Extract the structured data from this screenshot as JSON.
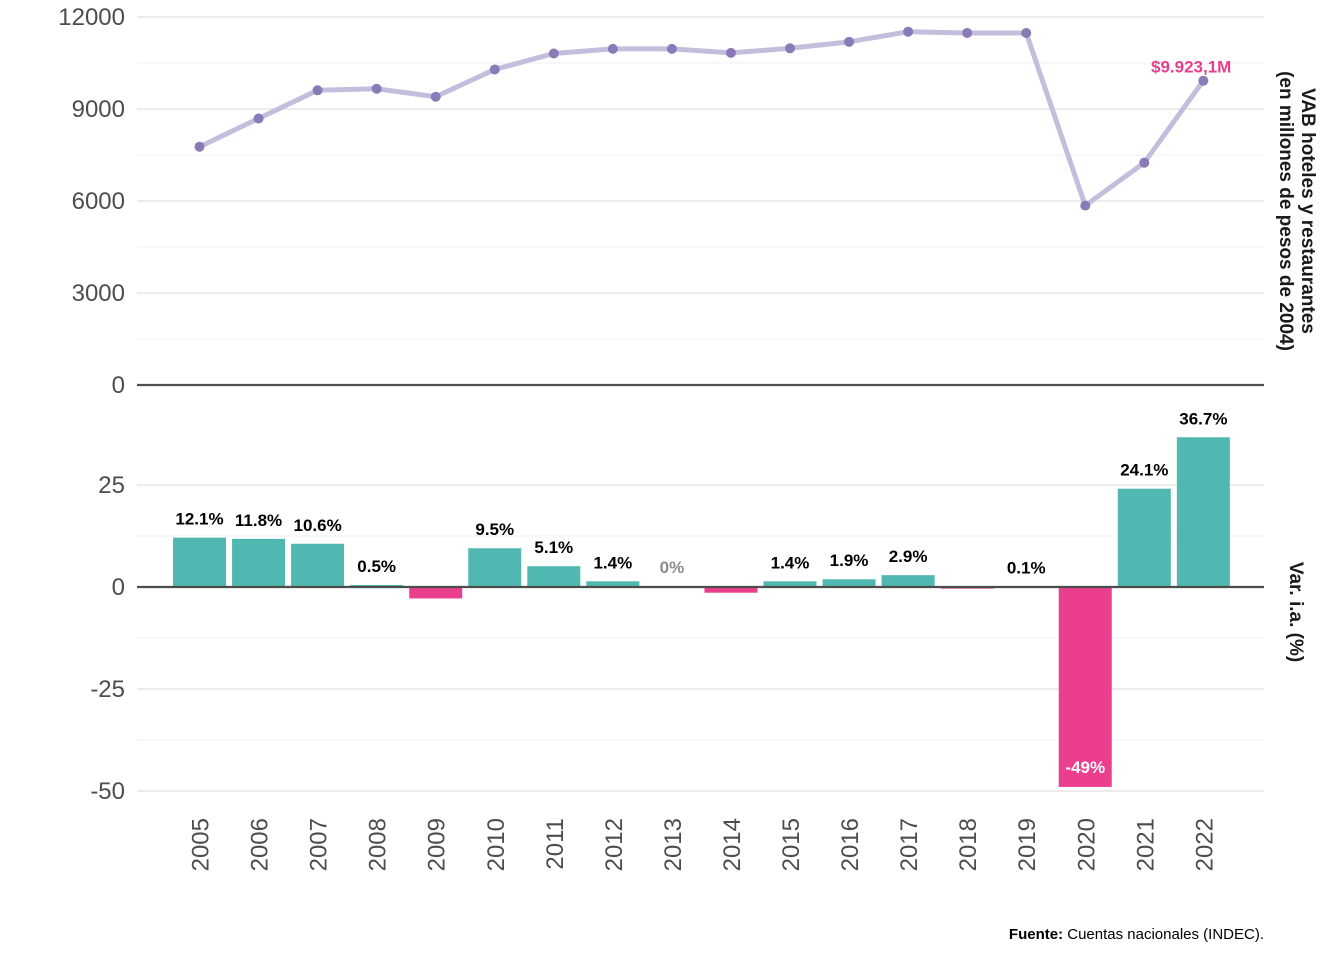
{
  "chart_data": {
    "type": "line+bar",
    "x": [
      "2005",
      "2006",
      "2007",
      "2008",
      "2009",
      "2010",
      "2011",
      "2012",
      "2013",
      "2014",
      "2015",
      "2016",
      "2017",
      "2018",
      "2019",
      "2020",
      "2021",
      "2022"
    ],
    "top_panel": {
      "type": "line",
      "ylabel_line1": "VAB hoteles y restaurantes",
      "ylabel_line2": "(en millones de pesos de 2004)",
      "ylim": [
        0,
        12000
      ],
      "yticks": [
        "0",
        "3000",
        "6000",
        "9000",
        "12000"
      ],
      "values": [
        7770,
        8690,
        9610,
        9660,
        9400,
        10290,
        10810,
        10960,
        10960,
        10830,
        10980,
        11190,
        11520,
        11480,
        11480,
        5850,
        7250,
        9923
      ],
      "line_color": "#c4bedd",
      "point_color": "#8a7ab8",
      "last_label": "$9.923,1M",
      "last_label_color": "#e83e8c"
    },
    "bottom_panel": {
      "type": "bar",
      "ylabel": "Var. i.a. (%)",
      "ylim": [
        -50,
        37
      ],
      "yticks": [
        "-50",
        "-25",
        "0",
        "25"
      ],
      "values": [
        12.1,
        11.8,
        10.6,
        0.5,
        -2.8,
        9.5,
        5.1,
        1.4,
        0.0,
        -1.4,
        1.4,
        1.9,
        2.9,
        -0.4,
        0.1,
        -49.0,
        24.1,
        36.7
      ],
      "labels": [
        "12.1%",
        "11.8%",
        "10.6%",
        "0.5%",
        "",
        "9.5%",
        "5.1%",
        "1.4%",
        "0%",
        "",
        "1.4%",
        "1.9%",
        "2.9%",
        "",
        "0.1%",
        "-49%",
        "24.1%",
        "36.7%"
      ],
      "positive_color": "#50b8b0",
      "negative_color": "#ec3e8e",
      "zero_label_color": "#8c8c8c"
    },
    "grid": true
  },
  "source": {
    "bold": "Fuente:",
    "text": " Cuentas nacionales (INDEC)."
  }
}
